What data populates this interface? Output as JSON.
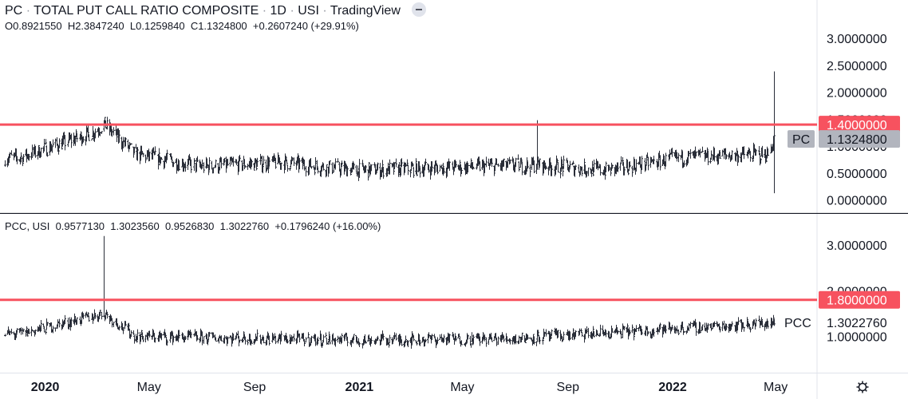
{
  "header": {
    "symbol": "PC",
    "title": "TOTAL PUT CALL RATIO COMPOSITE",
    "interval": "1D",
    "exchange": "USI",
    "source": "TradingView",
    "ohlc": {
      "open_label": "O",
      "open": "0.8921550",
      "high_label": "H",
      "high": "2.3847240",
      "low_label": "L",
      "low": "0.1259840",
      "close_label": "C",
      "close": "1.1324800",
      "change": "+0.2607240 (+29.91%)"
    }
  },
  "lower_header": {
    "symbol": "PCC, USI",
    "values": [
      "0.9577130",
      "1.3023560",
      "0.9526830",
      "1.3022760"
    ],
    "change": "+0.1796240 (+16.00%)"
  },
  "settings_icon": "gear-icon",
  "colors": {
    "bars": "#2a2e39",
    "hline": "#f7525f",
    "label_bg": "#f7525f",
    "tag_bg": "#b2b5be"
  },
  "chart_data": [
    {
      "type": "bar",
      "series_name": "PC",
      "description": "OHLC bars, daily",
      "x_range": [
        "2019-11-15",
        "2022-04-29"
      ],
      "ylim": [
        -0.05,
        3.0
      ],
      "y_ticks": [
        "0.0000000",
        "0.5000000",
        "1.0000000",
        "1.5000000",
        "2.0000000",
        "2.5000000",
        "3.0000000"
      ],
      "horizontal_line": {
        "value": 1.4,
        "label": "1.4000000"
      },
      "last_value": {
        "label": "PC",
        "value": "1.1324800"
      },
      "approx_levels": [
        {
          "date": "2019-12-01",
          "value": 0.78
        },
        {
          "date": "2020-02-25",
          "value": 1.25
        },
        {
          "date": "2020-03-10",
          "value": 1.4
        },
        {
          "date": "2020-04-15",
          "value": 0.85
        },
        {
          "date": "2020-07-01",
          "value": 0.62
        },
        {
          "date": "2020-10-01",
          "value": 0.7
        },
        {
          "date": "2021-01-01",
          "value": 0.55
        },
        {
          "date": "2021-04-01",
          "value": 0.6
        },
        {
          "date": "2021-07-28",
          "value": 0.65
        },
        {
          "date": "2021-10-15",
          "value": 0.55
        },
        {
          "date": "2022-01-15",
          "value": 0.8
        },
        {
          "date": "2022-04-22",
          "value": 0.85
        },
        {
          "date": "2022-04-29",
          "value": 1.13
        }
      ],
      "spikes": [
        {
          "date": "2021-07-27",
          "high": 1.48
        },
        {
          "date": "2022-04-29",
          "high": 2.3847,
          "low": 0.126
        }
      ]
    },
    {
      "type": "bar",
      "series_name": "PCC",
      "description": "OHLC bars, daily",
      "ylim": [
        0.5,
        3.3
      ],
      "y_ticks": [
        "1.0000000",
        "2.0000000",
        "3.0000000"
      ],
      "horizontal_line": {
        "value": 1.8,
        "label": "1.8000000"
      },
      "last_value": {
        "label": "PCC",
        "value": "1.3022760"
      },
      "approx_levels": [
        {
          "date": "2019-12-01",
          "value": 1.05
        },
        {
          "date": "2020-03-10",
          "value": 1.5
        },
        {
          "date": "2020-04-15",
          "value": 1.0
        },
        {
          "date": "2021-01-01",
          "value": 0.92
        },
        {
          "date": "2021-07-01",
          "value": 0.95
        },
        {
          "date": "2022-02-01",
          "value": 1.2
        },
        {
          "date": "2022-04-29",
          "value": 1.3
        }
      ],
      "spikes": [
        {
          "date": "2020-03-09",
          "high": 3.2
        }
      ]
    }
  ],
  "x_axis": {
    "labels": [
      {
        "text": "2020",
        "bold": true
      },
      {
        "text": "May",
        "bold": false
      },
      {
        "text": "Sep",
        "bold": false
      },
      {
        "text": "2021",
        "bold": true
      },
      {
        "text": "May",
        "bold": false
      },
      {
        "text": "Sep",
        "bold": false
      },
      {
        "text": "2022",
        "bold": true
      },
      {
        "text": "May",
        "bold": false
      }
    ]
  }
}
